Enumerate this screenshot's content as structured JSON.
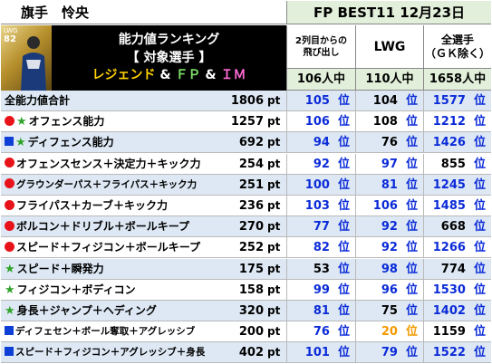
{
  "header": {
    "player_name": "旗手　怜央",
    "fp_title": "FP BEST11 12月23日"
  },
  "player_card": {
    "position": "LWG",
    "rating": "82"
  },
  "ranking_box": {
    "line1": "能力値ランキング",
    "line2": "【 対象選手 】",
    "line3_legend": "レジェンド",
    "line3_amp1": " & ",
    "line3_fp": "ＦＰ",
    "line3_amp2": " & ",
    "line3_im": "ＩＭ"
  },
  "columns": {
    "col1": [
      "2列目からの",
      "飛び出し"
    ],
    "col2": "LWG",
    "col3": [
      "全選手",
      "（ＧＫ除く）"
    ],
    "counts": [
      "106人中",
      "110人中",
      "1658人中"
    ]
  },
  "unit_pt": "pt",
  "unit_rank": "位",
  "colors": {
    "rank_blue": "#0b2bd8",
    "rank_orange": "#f39a00",
    "marker_red": "#e8131a",
    "marker_blue": "#0e3fd6",
    "marker_star": "#31a32b",
    "row_alt": "#dde8f4",
    "count_bg": "#e2efda"
  },
  "rows": [
    {
      "markers": [],
      "label": "全能力値合計",
      "points": "1806",
      "ranks": [
        {
          "v": "105",
          "c": "blue"
        },
        {
          "v": "104",
          "c": "black"
        },
        {
          "v": "1577",
          "c": "blue"
        }
      ]
    },
    {
      "markers": [
        "red",
        "star"
      ],
      "label": "オフェンス能力",
      "points": "1257",
      "ranks": [
        {
          "v": "106",
          "c": "blue"
        },
        {
          "v": "108",
          "c": "black"
        },
        {
          "v": "1212",
          "c": "blue"
        }
      ]
    },
    {
      "markers": [
        "blue",
        "star"
      ],
      "label": "ディフェンス能力",
      "points": "692",
      "ranks": [
        {
          "v": "94",
          "c": "blue"
        },
        {
          "v": "76",
          "c": "black"
        },
        {
          "v": "1426",
          "c": "blue"
        }
      ]
    },
    {
      "markers": [
        "red"
      ],
      "label": "オフェンスセンス＋決定力＋キック力",
      "points": "254",
      "ranks": [
        {
          "v": "92",
          "c": "blue"
        },
        {
          "v": "97",
          "c": "blue"
        },
        {
          "v": "855",
          "c": "black"
        }
      ]
    },
    {
      "markers": [
        "red"
      ],
      "label": "グラウンダーパス＋フライパス＋キック力",
      "points": "251",
      "ranks": [
        {
          "v": "100",
          "c": "blue"
        },
        {
          "v": "81",
          "c": "blue"
        },
        {
          "v": "1245",
          "c": "blue"
        }
      ]
    },
    {
      "markers": [
        "red"
      ],
      "label": "フライパス＋カーブ＋キック力",
      "points": "236",
      "ranks": [
        {
          "v": "103",
          "c": "blue"
        },
        {
          "v": "106",
          "c": "blue"
        },
        {
          "v": "1485",
          "c": "blue"
        }
      ]
    },
    {
      "markers": [
        "red"
      ],
      "label": "ボルコン＋ドリブル＋ボールキープ",
      "points": "270",
      "ranks": [
        {
          "v": "77",
          "c": "blue"
        },
        {
          "v": "92",
          "c": "blue"
        },
        {
          "v": "668",
          "c": "black"
        }
      ]
    },
    {
      "markers": [
        "red"
      ],
      "label": "スピード＋フィジコン＋ボールキープ",
      "points": "252",
      "ranks": [
        {
          "v": "82",
          "c": "blue"
        },
        {
          "v": "92",
          "c": "blue"
        },
        {
          "v": "1266",
          "c": "blue"
        }
      ]
    },
    {
      "markers": [
        "star"
      ],
      "label": "スピード＋瞬発力",
      "points": "175",
      "ranks": [
        {
          "v": "53",
          "c": "black"
        },
        {
          "v": "98",
          "c": "blue"
        },
        {
          "v": "774",
          "c": "black"
        }
      ]
    },
    {
      "markers": [
        "star"
      ],
      "label": "フィジコン＋ボディコン",
      "points": "158",
      "ranks": [
        {
          "v": "99",
          "c": "blue"
        },
        {
          "v": "96",
          "c": "blue"
        },
        {
          "v": "1530",
          "c": "blue"
        }
      ]
    },
    {
      "markers": [
        "star"
      ],
      "label": "身長＋ジャンプ＋ヘディング",
      "points": "320",
      "ranks": [
        {
          "v": "81",
          "c": "blue"
        },
        {
          "v": "75",
          "c": "black"
        },
        {
          "v": "1402",
          "c": "blue"
        }
      ]
    },
    {
      "markers": [
        "blue"
      ],
      "label": "ディフェセン＋ボール奪取＋アグレッシブ",
      "points": "200",
      "ranks": [
        {
          "v": "76",
          "c": "blue"
        },
        {
          "v": "20",
          "c": "orange"
        },
        {
          "v": "1159",
          "c": "black"
        }
      ]
    },
    {
      "markers": [
        "blue"
      ],
      "label": "スピード＋フィジコン＋アグレッシブ＋身長",
      "points": "402",
      "ranks": [
        {
          "v": "101",
          "c": "blue"
        },
        {
          "v": "79",
          "c": "blue"
        },
        {
          "v": "1522",
          "c": "blue"
        }
      ]
    }
  ]
}
